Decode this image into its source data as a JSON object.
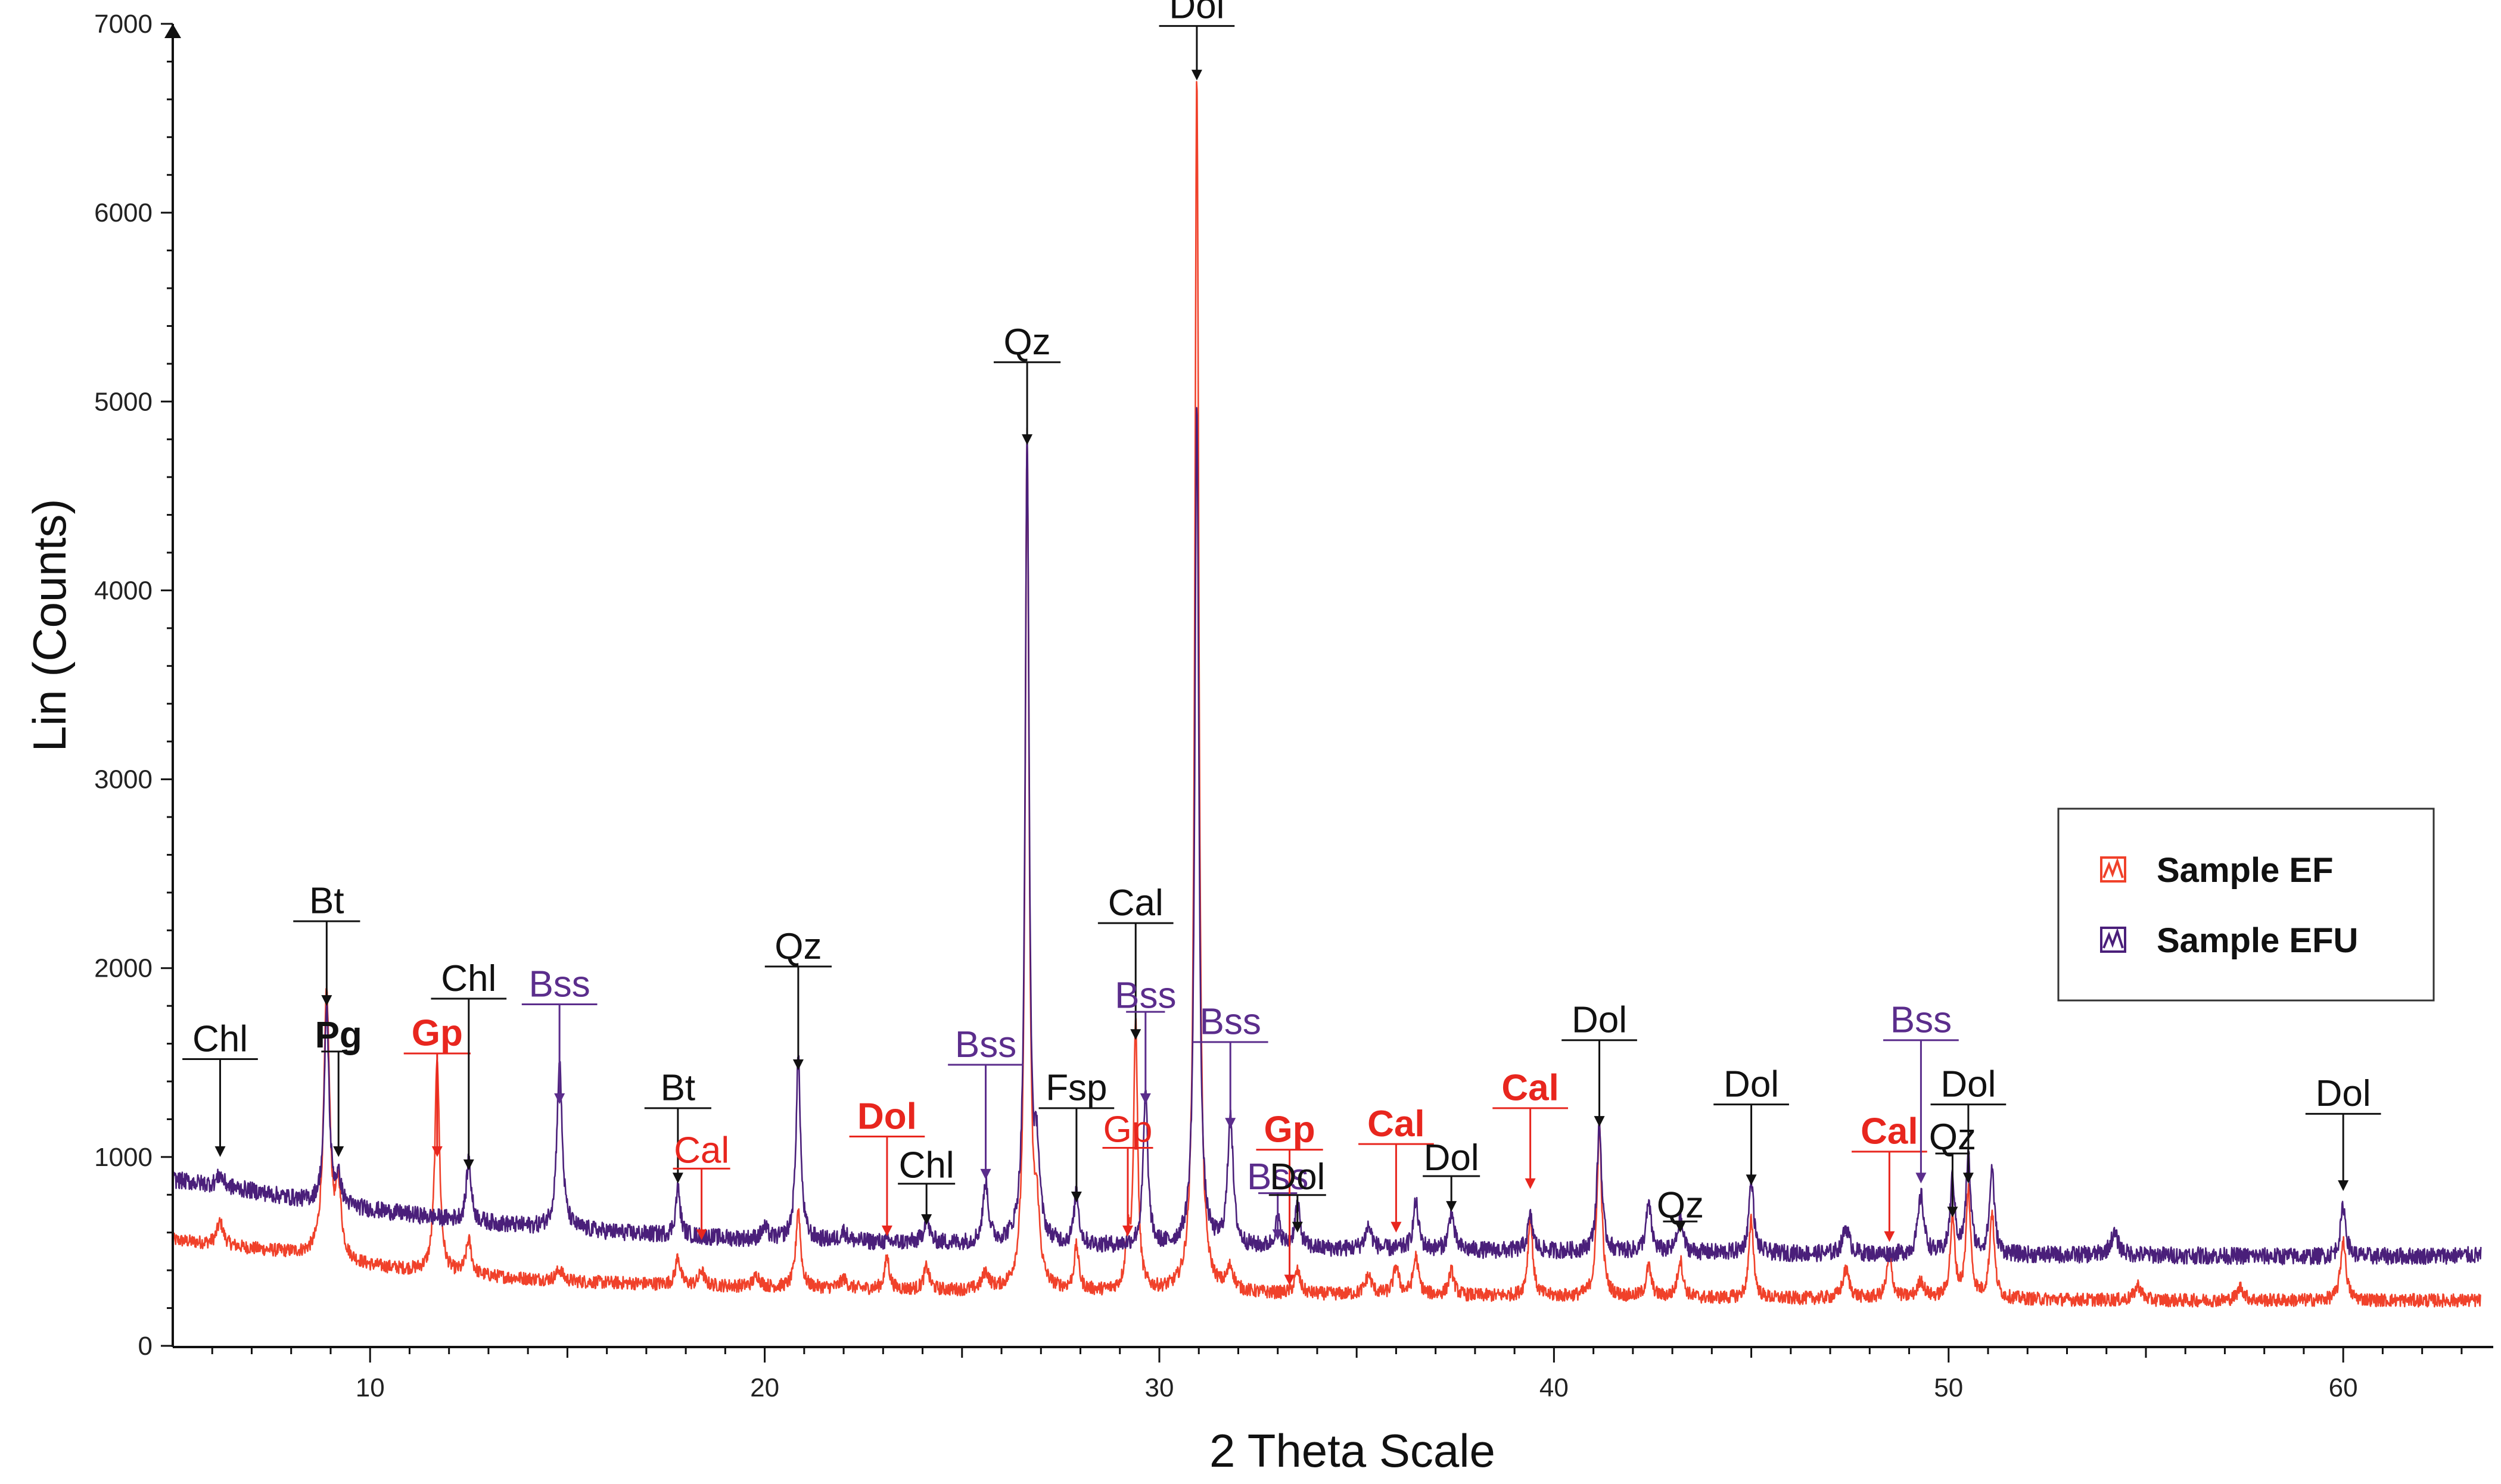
{
  "chart_data": {
    "type": "line",
    "xlabel": "2 Theta Scale",
    "ylabel": "Lin (Counts)",
    "xlim": [
      5,
      63.5
    ],
    "ylim": [
      0,
      7000
    ],
    "x_ticks": [
      10,
      20,
      30,
      40,
      50,
      60
    ],
    "x_tick_labels": [
      "10",
      "20",
      "30",
      "40",
      "50",
      "60"
    ],
    "y_ticks": [
      0,
      1000,
      2000,
      3000,
      4000,
      5000,
      6000,
      7000
    ],
    "y_tick_labels": [
      "0",
      "1000",
      "2000",
      "3000",
      "4000",
      "5000",
      "6000",
      "7000"
    ],
    "legend_position": "right",
    "colors": {
      "ef": "#f0412a",
      "efu": "#4a1f7a",
      "axis": "#111111",
      "label_red": "#e8261e",
      "label_purple": "#5b2d8c",
      "label_black": "#111111"
    },
    "series": [
      {
        "name": "Sample EF",
        "color": "#f0412a",
        "baseline": [
          [
            5,
            560
          ],
          [
            8,
            490
          ],
          [
            10,
            420
          ],
          [
            12,
            380
          ],
          [
            15,
            340
          ],
          [
            20,
            310
          ],
          [
            25,
            290
          ],
          [
            30,
            280
          ],
          [
            35,
            270
          ],
          [
            40,
            260
          ],
          [
            45,
            250
          ],
          [
            50,
            250
          ],
          [
            55,
            240
          ],
          [
            60,
            240
          ],
          [
            63.5,
            240
          ]
        ],
        "peaks": [
          [
            6.2,
            120,
            0.1
          ],
          [
            8.9,
            1400,
            0.09
          ],
          [
            9.2,
            350,
            0.08
          ],
          [
            11.7,
            1150,
            0.07
          ],
          [
            12.5,
            180,
            0.08
          ],
          [
            14.8,
            60,
            0.1
          ],
          [
            17.8,
            150,
            0.07
          ],
          [
            18.4,
            80,
            0.07
          ],
          [
            19.8,
            60,
            0.1
          ],
          [
            20.85,
            420,
            0.07
          ],
          [
            22.0,
            50,
            0.1
          ],
          [
            23.1,
            170,
            0.07
          ],
          [
            24.1,
            120,
            0.08
          ],
          [
            25.6,
            90,
            0.1
          ],
          [
            26.65,
            4520,
            0.06
          ],
          [
            26.9,
            350,
            0.08
          ],
          [
            27.9,
            230,
            0.07
          ],
          [
            29.2,
            250,
            0.07
          ],
          [
            29.4,
            1420,
            0.06
          ],
          [
            30.95,
            6450,
            0.06
          ],
          [
            31.8,
            120,
            0.1
          ],
          [
            33.5,
            120,
            0.08
          ],
          [
            35.3,
            100,
            0.1
          ],
          [
            36.0,
            150,
            0.08
          ],
          [
            36.5,
            200,
            0.08
          ],
          [
            37.4,
            130,
            0.08
          ],
          [
            39.4,
            420,
            0.07
          ],
          [
            41.15,
            920,
            0.07
          ],
          [
            42.4,
            160,
            0.08
          ],
          [
            43.2,
            200,
            0.08
          ],
          [
            45.0,
            420,
            0.07
          ],
          [
            47.4,
            150,
            0.1
          ],
          [
            48.5,
            220,
            0.08
          ],
          [
            49.3,
            90,
            0.1
          ],
          [
            50.1,
            420,
            0.07
          ],
          [
            50.5,
            570,
            0.07
          ],
          [
            51.1,
            460,
            0.07
          ],
          [
            54.8,
            80,
            0.1
          ],
          [
            57.4,
            70,
            0.1
          ],
          [
            60.0,
            320,
            0.08
          ]
        ],
        "noise": 35
      },
      {
        "name": "Sample EFU",
        "color": "#4a1f7a",
        "baseline": [
          [
            5,
            880
          ],
          [
            7,
            820
          ],
          [
            8.5,
            760
          ],
          [
            10,
            720
          ],
          [
            12,
            670
          ],
          [
            14,
            630
          ],
          [
            17,
            590
          ],
          [
            20,
            560
          ],
          [
            25,
            540
          ],
          [
            30,
            520
          ],
          [
            35,
            510
          ],
          [
            40,
            500
          ],
          [
            45,
            490
          ],
          [
            50,
            480
          ],
          [
            55,
            480
          ],
          [
            60,
            470
          ],
          [
            63.5,
            480
          ]
        ],
        "peaks": [
          [
            6.2,
            60,
            0.1
          ],
          [
            8.9,
            1050,
            0.07
          ],
          [
            9.2,
            130,
            0.08
          ],
          [
            12.5,
            330,
            0.07
          ],
          [
            14.8,
            880,
            0.08
          ],
          [
            17.8,
            250,
            0.07
          ],
          [
            20.0,
            60,
            0.1
          ],
          [
            20.85,
            970,
            0.07
          ],
          [
            22.0,
            50,
            0.1
          ],
          [
            24.1,
            130,
            0.08
          ],
          [
            25.6,
            320,
            0.08
          ],
          [
            26.65,
            4280,
            0.06
          ],
          [
            26.9,
            420,
            0.08
          ],
          [
            27.9,
            280,
            0.07
          ],
          [
            29.65,
            810,
            0.07
          ],
          [
            30.95,
            4480,
            0.06
          ],
          [
            31.8,
            710,
            0.08
          ],
          [
            33.0,
            150,
            0.08
          ],
          [
            33.5,
            230,
            0.08
          ],
          [
            35.3,
            120,
            0.1
          ],
          [
            36.5,
            250,
            0.08
          ],
          [
            37.4,
            200,
            0.08
          ],
          [
            39.4,
            180,
            0.08
          ],
          [
            41.15,
            680,
            0.07
          ],
          [
            42.4,
            250,
            0.08
          ],
          [
            43.2,
            180,
            0.08
          ],
          [
            45.0,
            400,
            0.07
          ],
          [
            47.4,
            140,
            0.1
          ],
          [
            49.3,
            310,
            0.09
          ],
          [
            50.1,
            400,
            0.07
          ],
          [
            50.5,
            520,
            0.07
          ],
          [
            51.1,
            460,
            0.07
          ],
          [
            54.2,
            110,
            0.12
          ],
          [
            60.0,
            270,
            0.08
          ]
        ],
        "noise": 45
      }
    ],
    "annotations": [
      {
        "label": "Chl",
        "x": 6.2,
        "y_text": 1560,
        "y_arrow": 1000,
        "color": "black",
        "size": "large",
        "weight": "normal"
      },
      {
        "label": "Bt",
        "x": 8.9,
        "y_text": 2290,
        "y_arrow": 1800,
        "color": "black",
        "size": "large",
        "weight": "normal"
      },
      {
        "label": "Pg",
        "x": 9.2,
        "y_text": 1580,
        "y_arrow": 1000,
        "color": "black",
        "size": "small",
        "weight": "bold"
      },
      {
        "label": "Gp",
        "x": 11.7,
        "y_text": 1590,
        "y_arrow": 1000,
        "color": "red",
        "size": "large",
        "weight": "bold"
      },
      {
        "label": "Chl",
        "x": 12.5,
        "y_text": 1880,
        "y_arrow": 930,
        "color": "black",
        "size": "large",
        "weight": "normal"
      },
      {
        "label": "Bss",
        "x": 14.8,
        "y_text": 1850,
        "y_arrow": 1280,
        "color": "purple",
        "size": "large",
        "weight": "normal"
      },
      {
        "label": "Bt",
        "x": 17.8,
        "y_text": 1300,
        "y_arrow": 860,
        "color": "black",
        "size": "large",
        "weight": "normal"
      },
      {
        "label": "Cal",
        "x": 18.4,
        "y_text": 970,
        "y_arrow": 560,
        "color": "red",
        "size": "medium",
        "weight": "normal"
      },
      {
        "label": "Qz",
        "x": 20.85,
        "y_text": 2050,
        "y_arrow": 1460,
        "color": "black",
        "size": "large",
        "weight": "normal"
      },
      {
        "label": "Dol",
        "x": 23.1,
        "y_text": 1150,
        "y_arrow": 580,
        "color": "red",
        "size": "large",
        "weight": "bold"
      },
      {
        "label": "Chl",
        "x": 24.1,
        "y_text": 890,
        "y_arrow": 640,
        "color": "black",
        "size": "medium",
        "weight": "normal"
      },
      {
        "label": "Bss",
        "x": 25.6,
        "y_text": 1530,
        "y_arrow": 880,
        "color": "purple",
        "size": "large",
        "weight": "normal"
      },
      {
        "label": "Qz",
        "x": 26.65,
        "y_text": 5250,
        "y_arrow": 4770,
        "color": "black",
        "size": "large",
        "weight": "normal"
      },
      {
        "label": "Fsp",
        "x": 27.9,
        "y_text": 1300,
        "y_arrow": 760,
        "color": "black",
        "size": "large",
        "weight": "normal"
      },
      {
        "label": "Gp",
        "x": 29.2,
        "y_text": 1080,
        "y_arrow": 580,
        "color": "red",
        "size": "medium",
        "weight": "normal"
      },
      {
        "label": "Cal",
        "x": 29.4,
        "y_text": 2280,
        "y_arrow": 1620,
        "color": "black",
        "size": "large",
        "weight": "normal"
      },
      {
        "label": "Bss",
        "x": 29.65,
        "y_text": 1790,
        "y_arrow": 1280,
        "color": "purple",
        "size": "small",
        "weight": "normal"
      },
      {
        "label": "Dol",
        "x": 30.95,
        "y_text": 7030,
        "y_arrow": 6700,
        "color": "black",
        "size": "large",
        "weight": "normal"
      },
      {
        "label": "Bss",
        "x": 31.8,
        "y_text": 1650,
        "y_arrow": 1150,
        "color": "purple",
        "size": "large",
        "weight": "normal"
      },
      {
        "label": "Bss",
        "x": 33.0,
        "y_text": 830,
        "y_arrow": 560,
        "color": "purple",
        "size": "small",
        "weight": "normal"
      },
      {
        "label": "Gp",
        "x": 33.3,
        "y_text": 1080,
        "y_arrow": 320,
        "color": "red",
        "size": "large",
        "weight": "bold"
      },
      {
        "label": "Dol",
        "x": 33.5,
        "y_text": 830,
        "y_arrow": 600,
        "color": "black",
        "size": "medium",
        "weight": "normal"
      },
      {
        "label": "Cal",
        "x": 36.0,
        "y_text": 1110,
        "y_arrow": 600,
        "color": "red",
        "size": "large",
        "weight": "bold"
      },
      {
        "label": "Dol",
        "x": 37.4,
        "y_text": 930,
        "y_arrow": 710,
        "color": "black",
        "size": "medium",
        "weight": "normal"
      },
      {
        "label": "Cal",
        "x": 39.4,
        "y_text": 1300,
        "y_arrow": 830,
        "color": "red",
        "size": "large",
        "weight": "bold"
      },
      {
        "label": "Dol",
        "x": 41.15,
        "y_text": 1660,
        "y_arrow": 1160,
        "color": "black",
        "size": "large",
        "weight": "normal"
      },
      {
        "label": "Qz",
        "x": 43.2,
        "y_text": 680,
        "y_arrow": 600,
        "color": "black",
        "size": "small",
        "weight": "normal"
      },
      {
        "label": "Dol",
        "x": 45.0,
        "y_text": 1320,
        "y_arrow": 850,
        "color": "black",
        "size": "large",
        "weight": "normal"
      },
      {
        "label": "Cal",
        "x": 48.5,
        "y_text": 1070,
        "y_arrow": 550,
        "color": "red",
        "size": "large",
        "weight": "bold"
      },
      {
        "label": "Bss",
        "x": 49.3,
        "y_text": 1660,
        "y_arrow": 860,
        "color": "purple",
        "size": "large",
        "weight": "normal"
      },
      {
        "label": "Dol",
        "x": 50.5,
        "y_text": 1320,
        "y_arrow": 860,
        "color": "black",
        "size": "large",
        "weight": "normal"
      },
      {
        "label": "Qz",
        "x": 50.1,
        "y_text": 1040,
        "y_arrow": 680,
        "color": "black",
        "size": "small",
        "weight": "normal"
      },
      {
        "label": "Dol",
        "x": 60.0,
        "y_text": 1270,
        "y_arrow": 820,
        "color": "black",
        "size": "large",
        "weight": "normal"
      }
    ],
    "legend": [
      {
        "label": "Sample EF",
        "color": "#f0412a"
      },
      {
        "label": "Sample EFU",
        "color": "#4a1f7a"
      }
    ]
  }
}
